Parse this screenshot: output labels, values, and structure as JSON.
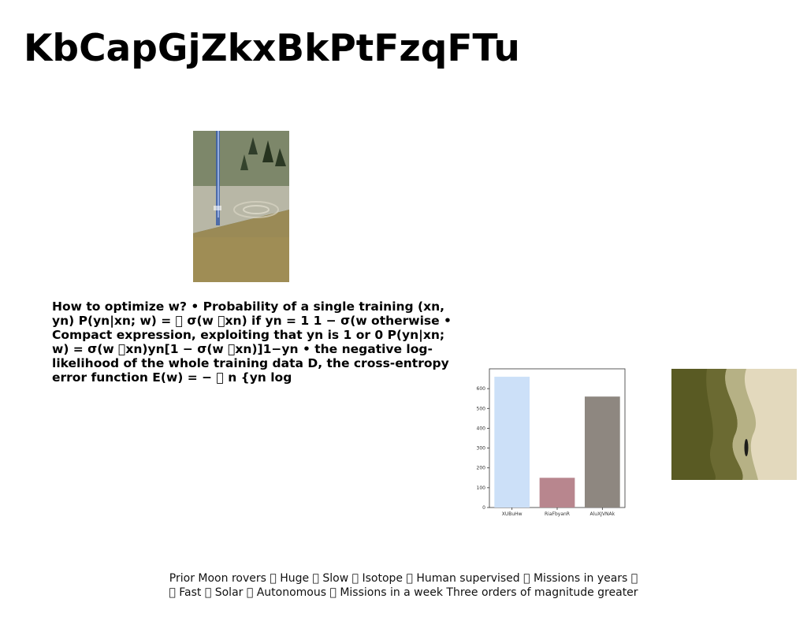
{
  "slide": {
    "title": "KbCapGjZkxBkPtFzqFTu",
    "body": "How to optimize w? • Probability of a single training (xn, yn) P(yn|xn; w) = \u0000 σ(w \u0000xn) if yn = 1 1 − σ(w otherwise • Compact expression, exploiting that yn is 1 or 0 P(yn|xn; w) = σ(w \u0000xn)yn[1 − σ(w \u0000xn)]1−yn • the negative log-likelihood of the whole training data D, the cross-entropy error function E(w) = − \u0000 n {yn log",
    "footer_line1": "Prior Moon rovers \u0000 Huge \u0000 Slow \u0000 Isotope \u0000 Human supervised \u0000 Missions in years \u0000",
    "footer_line2": "\u0000 Fast \u0000 Solar \u0000 Autonomous \u0000 Missions in a week Three orders of magnitude greater"
  },
  "images": {
    "fountain": "fountain-photo",
    "aerial": "aerial-boat-photo"
  },
  "chart_data": {
    "type": "bar",
    "categories": [
      "XUBuHw",
      "RiaFbyanR",
      "AluXJVNAk"
    ],
    "values": [
      660,
      150,
      560
    ],
    "colors": [
      "#cce0f8",
      "#b8868e",
      "#8e8780"
    ],
    "ylim": [
      0,
      700
    ],
    "yticks": [
      0,
      100,
      200,
      300,
      400,
      500,
      600
    ],
    "title": "",
    "xlabel": "",
    "ylabel": "",
    "grid": false
  }
}
